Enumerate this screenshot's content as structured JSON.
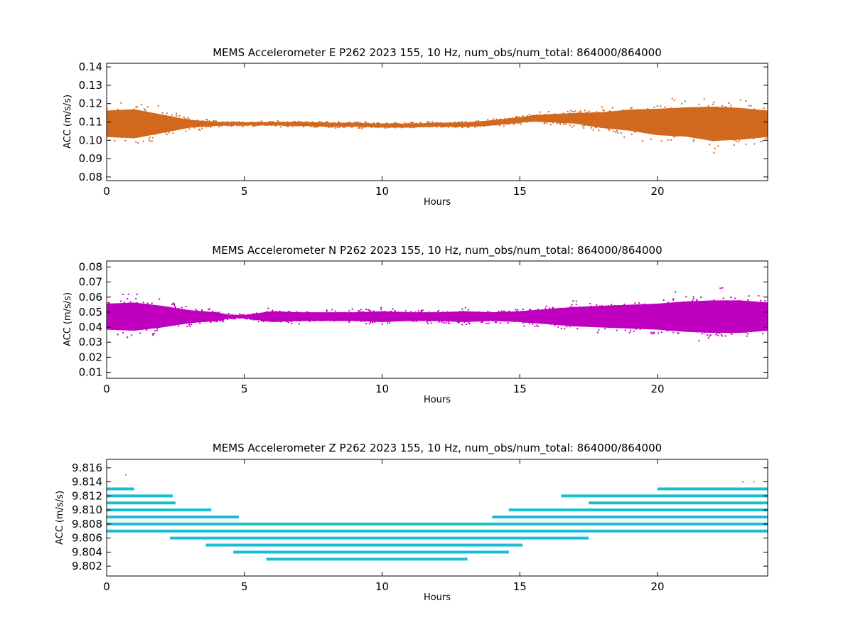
{
  "chart_data": [
    {
      "type": "scatter",
      "title": "MEMS Accelerometer E P262 2023 155, 10 Hz, num_obs/num_total: 864000/864000",
      "xlabel": "Hours",
      "ylabel": "ACC (m/s/s)",
      "xlim": [
        0,
        24
      ],
      "ylim": [
        0.078,
        0.142
      ],
      "xticks": [
        "0",
        "5",
        "10",
        "15",
        "20"
      ],
      "yticks": [
        "0.08",
        "0.09",
        "0.10",
        "0.11",
        "0.12",
        "0.13",
        "0.14"
      ],
      "color": "#d2691e",
      "grid": false,
      "series": [
        {
          "x": [
            0,
            1,
            2,
            3,
            4,
            5,
            6,
            7,
            8,
            9,
            10,
            11,
            12,
            13,
            14,
            15,
            15.5,
            16,
            17,
            18,
            19,
            20,
            21,
            22,
            23,
            24
          ],
          "center": [
            0.109,
            0.109,
            0.109,
            0.109,
            0.109,
            0.109,
            0.109,
            0.109,
            0.1085,
            0.1085,
            0.108,
            0.108,
            0.1085,
            0.1085,
            0.1095,
            0.111,
            0.112,
            0.112,
            0.112,
            0.111,
            0.111,
            0.11,
            0.11,
            0.109,
            0.109,
            0.109
          ],
          "spread": [
            0.01,
            0.011,
            0.007,
            0.003,
            0.0015,
            0.0012,
            0.0013,
            0.0015,
            0.0015,
            0.0015,
            0.0015,
            0.0015,
            0.0015,
            0.0017,
            0.002,
            0.002,
            0.0025,
            0.003,
            0.004,
            0.006,
            0.008,
            0.01,
            0.011,
            0.013,
            0.012,
            0.01
          ]
        }
      ]
    },
    {
      "type": "scatter",
      "title": "MEMS Accelerometer N P262 2023 155, 10 Hz, num_obs/num_total: 864000/864000",
      "xlabel": "Hours",
      "ylabel": "ACC (m/s/s)",
      "xlim": [
        0,
        24
      ],
      "ylim": [
        0.006,
        0.084
      ],
      "xticks": [
        "0",
        "5",
        "10",
        "15",
        "20"
      ],
      "yticks": [
        "0.01",
        "0.02",
        "0.03",
        "0.04",
        "0.05",
        "0.06",
        "0.07",
        "0.08"
      ],
      "color": "#bf00bf",
      "grid": false,
      "series": [
        {
          "x": [
            0,
            1,
            2,
            3,
            4,
            4.5,
            5,
            6,
            7,
            8,
            9,
            10,
            11,
            12,
            13,
            14,
            15,
            16,
            17,
            18,
            19,
            20,
            21,
            22,
            23,
            24
          ],
          "center": [
            0.047,
            0.047,
            0.047,
            0.047,
            0.047,
            0.047,
            0.047,
            0.047,
            0.047,
            0.047,
            0.047,
            0.047,
            0.047,
            0.047,
            0.047,
            0.047,
            0.047,
            0.047,
            0.047,
            0.047,
            0.047,
            0.047,
            0.047,
            0.047,
            0.047,
            0.047
          ],
          "spread": [
            0.012,
            0.013,
            0.01,
            0.006,
            0.004,
            0.0015,
            0.0015,
            0.005,
            0.004,
            0.004,
            0.004,
            0.005,
            0.004,
            0.004,
            0.005,
            0.004,
            0.005,
            0.007,
            0.009,
            0.01,
            0.011,
            0.012,
            0.014,
            0.015,
            0.015,
            0.013
          ]
        }
      ]
    },
    {
      "type": "scatter",
      "title": "MEMS Accelerometer Z P262 2023 155, 10 Hz, num_obs/num_total: 864000/864000",
      "xlabel": "Hours",
      "ylabel": "ACC (m/s/s)",
      "xlim": [
        0,
        24
      ],
      "ylim": [
        9.8006,
        9.8172
      ],
      "xticks": [
        "0",
        "5",
        "10",
        "15",
        "20"
      ],
      "yticks": [
        "9.802",
        "9.804",
        "9.806",
        "9.808",
        "9.810",
        "9.812",
        "9.814",
        "9.816"
      ],
      "color": "#17becf",
      "grid": false,
      "levels": [
        {
          "y": 9.813,
          "x": [
            [
              0,
              1.0
            ],
            [
              20,
              24
            ]
          ]
        },
        {
          "y": 9.812,
          "x": [
            [
              0,
              2.4
            ],
            [
              16.5,
              24
            ]
          ]
        },
        {
          "y": 9.811,
          "x": [
            [
              0,
              2.5
            ],
            [
              17.5,
              24
            ]
          ]
        },
        {
          "y": 9.81,
          "x": [
            [
              0,
              3.8
            ],
            [
              14.6,
              24
            ]
          ]
        },
        {
          "y": 9.809,
          "x": [
            [
              0,
              4.8
            ],
            [
              14.0,
              24
            ]
          ]
        },
        {
          "y": 9.808,
          "x": [
            [
              0,
              24
            ]
          ]
        },
        {
          "y": 9.807,
          "x": [
            [
              0,
              24
            ]
          ]
        },
        {
          "y": 9.806,
          "x": [
            [
              2.3,
              17.5
            ]
          ]
        },
        {
          "y": 9.805,
          "x": [
            [
              3.6,
              15.1
            ]
          ]
        },
        {
          "y": 9.804,
          "x": [
            [
              4.6,
              14.6
            ]
          ]
        },
        {
          "y": 9.803,
          "x": [
            [
              5.8,
              13.1
            ]
          ]
        }
      ],
      "outliers": [
        {
          "x": 0.7,
          "y": 9.815
        },
        {
          "x": 23.1,
          "y": 9.814
        },
        {
          "x": 23.5,
          "y": 9.814
        }
      ]
    }
  ]
}
